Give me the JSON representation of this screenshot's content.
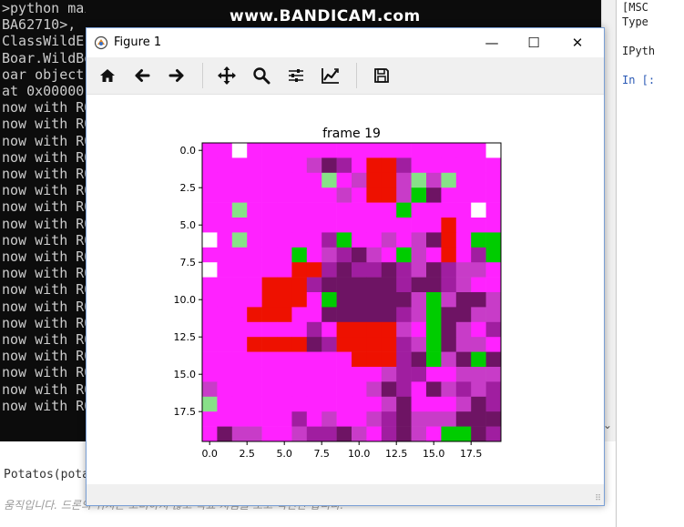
{
  "watermark": "www.BANDICAM.com",
  "console": {
    "lines": [
      ">python main.py",
      "BA62710>, ",
      "ClassWildE",
      "Boar.WildBo",
      "oar object",
      "at 0x00000",
      "now with RO",
      "now with RO",
      "now with RO",
      "now with RO",
      "now with RO",
      "now with RO",
      "now with RO",
      "now with RO",
      "now with RO",
      "now with RO",
      "now with RO",
      "now with RO",
      "now with RO",
      "now with RO",
      "now with RO",
      "now with RO",
      "now with RO",
      "now with RO",
      "now with RO"
    ]
  },
  "ipython": {
    "lines": [
      "[MSC",
      "Type",
      "",
      "IPyth",
      "",
      "In [:"
    ]
  },
  "bottom": {
    "code": "Potatos(pota",
    "comment": "움직입니다. 드론의 위치는 고려하지 않고 목표 지점을 보고 직진만 합니다."
  },
  "window": {
    "title": "Figure 1",
    "minimize": "—",
    "maximize": "☐",
    "close": "✕"
  },
  "toolbar": {
    "buttons": [
      "home-icon",
      "back-arrow-icon",
      "forward-arrow-icon",
      "pan-icon",
      "zoom-icon",
      "configure-subplots-icon",
      "edit-axis-icon",
      "save-icon"
    ]
  },
  "colors": {
    "magenta": "#ff22ff",
    "green": "#00cc00",
    "red": "#ee1100",
    "window_border": "#7aa0d6"
  },
  "chart_data": {
    "type": "heatmap",
    "title": "frame 19",
    "rows": 20,
    "cols": 20,
    "xticks": [
      "0.0",
      "2.5",
      "5.0",
      "7.5",
      "10.0",
      "12.5",
      "15.0",
      "17.5"
    ],
    "yticks": [
      "0.0",
      "2.5",
      "5.0",
      "7.5",
      "10.0",
      "12.5",
      "15.0",
      "17.5"
    ],
    "legend": {
      "M": "magenta",
      "P": "light purple",
      "Q": "medium purple",
      "D": "dark purple",
      "G": "green",
      "g": "light green",
      "R": "red",
      "W": "white"
    },
    "palette": {
      "M": "#ff22ff",
      "P": "#c83cc8",
      "Q": "#a01ea0",
      "D": "#6e1464",
      "G": "#00cc00",
      "g": "#88e088",
      "R": "#ee1100",
      "W": "#ffffff"
    },
    "grid": [
      "MMWMMMMMMMMMMMMMMMMW",
      "MMMMMMMPDQMRRQMMMMMM",
      "MMMMMMMMgMPRRPgPgMMM",
      "MMMMMMMMMPMRRPGDMMMM",
      "MMgMMMMMMMMMMGMMMMWM",
      "MMMMMMMMMMMMMMMMRMMM",
      "WMgMMMMMQGMMPMPDRMGG",
      "MMMMMMGMPQDPMGPMRMQG",
      "WMMMMMRRQDQQDQPDQPPM",
      "MMMMRRRQDDDDDQDDQPMM",
      "MMMMRRRMGDDDDDPGPDDP",
      "MMMRRRMMDDDDDQPGDDPP",
      "MMMMMMMQMRRRRPMGDPMQ",
      "MMMRRRRDQRRRRQPGDPPM",
      "MMMMMMMMMMRRRQDGPDGD",
      "MMMMMMMMMMMMPQQMMPPP",
      "PMMMMMMMMMMPDQMDPQPQ",
      "gMMMMMMMMMMMPDMMMPDQ",
      "MMMMMMQMPMMPQDPPPDDD",
      "MDPPMMPQQDPMQDPMGGDQ"
    ],
    "xlim": [
      -0.5,
      19.5
    ],
    "ylim": [
      19.5,
      -0.5
    ]
  }
}
